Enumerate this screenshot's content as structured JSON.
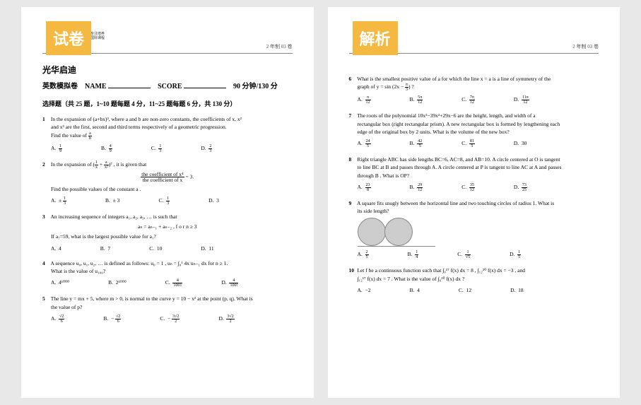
{
  "badges": {
    "left": "试卷",
    "right": "解析"
  },
  "header": {
    "small1": "专注培养",
    "small2": "国际课程",
    "page_ref": "2 年制 03 卷"
  },
  "titles": {
    "cn_title": "光华启迪",
    "sub_label": "英数模拟卷",
    "name_label": "NAME",
    "score_label": "SCORE",
    "time_label": "90 分钟/130 分"
  },
  "section": "选择题（共 25 题，1~10 题每题 4 分，11~25 题每题 6 分，共 130 分）",
  "left": {
    "q1": {
      "line1": "In the expansion of  (a+bx)³, where  a  and  b  are non-zero constants, the coefficients of  x, x²",
      "line2": "and  x³ are the first, second and third terms respectively of a geometric progression.",
      "line3": "Find the value of ",
      "frac": {
        "n": "a",
        "d": "b"
      },
      "A": {
        "n": "1",
        "d": "9"
      },
      "B": {
        "n": "4",
        "d": "9"
      },
      "C": {
        "n": "1",
        "d": "3"
      },
      "D": {
        "n": "2",
        "d": "3"
      }
    },
    "q2": {
      "line1": "In the expansion of  ",
      "expr_left": {
        "n": "1",
        "d": "x"
      },
      "expr_plus": " + ",
      "expr_right": {
        "n": "a",
        "d": "x²"
      },
      "line1b": " , it is given that",
      "frac_top": "the coefficient of  x⁴",
      "frac_bot": "the coefficient of  x",
      "eq": " = 3.",
      "line2": "Find the possible values of the constant  a .",
      "A": "± ",
      "Af": {
        "n": "1",
        "d": "3"
      },
      "B": "± 3",
      "C": {
        "n": "1",
        "d": "3"
      },
      "D": "3"
    },
    "q3": {
      "line1": "An increasing sequence of integers  a₁, a₂, a₃, …  is such that",
      "formula": "aₙ = aₙ₋₁ + aₙ₋₂ ,    f o r   n ≥ 3",
      "line2": "If  a₇=59, what is the largest possible value for  a₁?",
      "A": "4",
      "B": "7",
      "C": "10",
      "D": "11"
    },
    "q4": {
      "line1": "A sequence  u₀, u₁, u₂, …  is defined as follows:   u₀ = 1 ,   uₙ = ∫₀¹ 4x uₙ₋₁ dx   for  n ≥ 1.",
      "line2": "What is the value of   u₁₀₀?",
      "A": "4¹⁰⁰⁰",
      "B": "2¹⁰⁰⁰",
      "C": {
        "n": "4",
        "d": "1001"
      },
      "D": {
        "n": "4",
        "d": "100!"
      }
    },
    "q5": {
      "line1": "The line  y = mx + 5, where  m > 0, is normal to the curve  y = 10 − x² at the point  (p, q). What is",
      "line2": "the value of  p?",
      "A": {
        "n": "√2",
        "d": "6"
      },
      "B": "− ",
      "Bf": {
        "n": "√2",
        "d": "6"
      },
      "C": "− ",
      "Cf": {
        "n": "3√2",
        "d": "2"
      },
      "D": {
        "n": "3√2",
        "d": "2"
      }
    }
  },
  "right": {
    "q6": {
      "line1": "What is the smallest positive value of  a  for which the line  x = a  is a line of symmetry of the",
      "line2": "graph of   y = sin",
      "expr": {
        "inside": "2x − "
      },
      "exprf": {
        "n": "π",
        "d": "3"
      },
      "A": {
        "n": "π",
        "d": "12"
      },
      "B": {
        "n": "5π",
        "d": "12"
      },
      "C": {
        "n": "7π",
        "d": "12"
      },
      "D": {
        "n": "11π",
        "d": "12"
      }
    },
    "q7": {
      "line1": "The roots of the polynomial  10x³−39x²+29x−6  are the height, length, and width of a",
      "line2": "rectangular box (right rectangular prism). A new rectangular box is formed by lengthening each",
      "line3": "edge of the original box by 2 units. What is the volume of the new box?",
      "A": {
        "n": "24",
        "d": "5"
      },
      "B": {
        "n": "42",
        "d": "5"
      },
      "C": {
        "n": "81",
        "d": "5"
      },
      "D": "30"
    },
    "q8": {
      "line1": "Right triangle  ABC has side lengths  BC=6, AC=8, and  AB=10. A circle centered at O is tangent",
      "line2": "to line  BC at  B and passes through  A. A circle centered at P is tangent to line  AC at  A and passes",
      "line3": "through  B . What is  OP?",
      "A": {
        "n": "23",
        "d": "8"
      },
      "B": {
        "n": "29",
        "d": "12"
      },
      "C": {
        "n": "35",
        "d": "12"
      },
      "D": {
        "n": "73",
        "d": "25"
      }
    },
    "q9": {
      "line1": "A square fits snugly between the horizontal line and two touching circles of radius 1. What is",
      "line2": "its side length?",
      "A": {
        "n": "2",
        "d": "5"
      },
      "B": {
        "n": "1",
        "d": "4"
      },
      "C": {
        "n": "1",
        "d": "√5"
      },
      "D": {
        "n": "1",
        "d": "5"
      }
    },
    "q10": {
      "line1": "Let  f  be a continuous function such that  ∫₀¹⁷ f(x) dx = 8 , ∫₁₂²⁰ f(x) dx = −3 , and",
      "line2": "∫₁₂¹⁷ f(x) dx = 7 . What is the value of  ∫₀²⁰ f(x) dx ?",
      "A": "−2",
      "B": "4",
      "C": "12",
      "D": "18"
    }
  }
}
